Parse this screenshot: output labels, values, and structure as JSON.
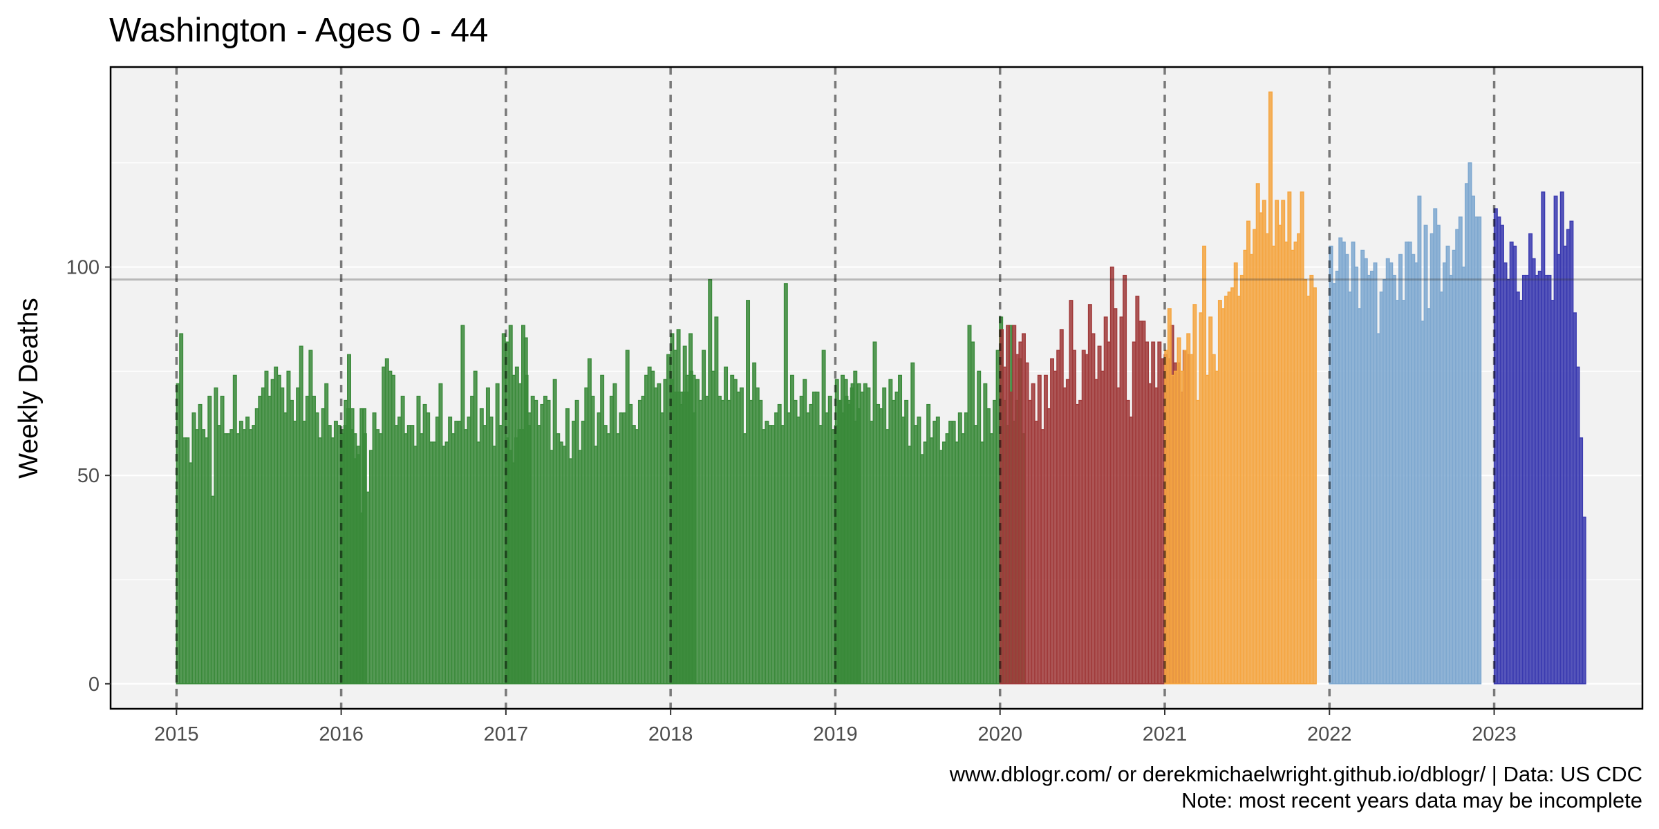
{
  "chart_data": {
    "type": "bar",
    "title": "Washington  - Ages 0 - 44",
    "xlabel": "",
    "ylabel": "Weekly Deaths",
    "x_ticks": [
      "2015",
      "2016",
      "2017",
      "2018",
      "2019",
      "2020",
      "2021",
      "2022",
      "2023"
    ],
    "y_ticks": [
      0,
      50,
      100
    ],
    "xlim": [
      2014.6,
      2023.9
    ],
    "ylim": [
      -6,
      148
    ],
    "grid": true,
    "reference_line": 97,
    "year_divider_lines": "dashed",
    "series": [
      {
        "year": "2015",
        "color": "#3a8a3a",
        "values": [
          72,
          84,
          59,
          59,
          53,
          65,
          61,
          67,
          61,
          59,
          69,
          45,
          71,
          62,
          69,
          60,
          60,
          61,
          74,
          60,
          63,
          61,
          64,
          61,
          62,
          66,
          69,
          71,
          75,
          69,
          73,
          76,
          74,
          71,
          65,
          75,
          68,
          63,
          71,
          81,
          63,
          69,
          80,
          69,
          65,
          59,
          66,
          72,
          62,
          59,
          63,
          62,
          61,
          62,
          66,
          61,
          60,
          55,
          41,
          66
        ]
      },
      {
        "year": "2016",
        "color": "#3a8a3a",
        "values": [
          60,
          68,
          79,
          66,
          54,
          57,
          66,
          60,
          46,
          56,
          65,
          61,
          60,
          76,
          78,
          75,
          74,
          62,
          64,
          69,
          60,
          62,
          62,
          57,
          69,
          60,
          67,
          65,
          58,
          58,
          64,
          72,
          57,
          58,
          64,
          60,
          63,
          63,
          86,
          61,
          64,
          69,
          75,
          58,
          66,
          62,
          71,
          64,
          57,
          72,
          62,
          84,
          59,
          56,
          53,
          59,
          61,
          61,
          83,
          62
        ]
      },
      {
        "year": "2017",
        "color": "#3a8a3a",
        "values": [
          82,
          86,
          74,
          76,
          72,
          86,
          74,
          65,
          69,
          68,
          62,
          67,
          69,
          68,
          56,
          73,
          60,
          58,
          57,
          66,
          54,
          63,
          68,
          56,
          63,
          71,
          78,
          69,
          57,
          65,
          74,
          62,
          60,
          69,
          72,
          60,
          65,
          65,
          80,
          67,
          62,
          61,
          68,
          69,
          74,
          76,
          75,
          71,
          72,
          65,
          73,
          79,
          73,
          70,
          70,
          67,
          70,
          74,
          84,
          74
        ]
      },
      {
        "year": "2018",
        "color": "#3a8a3a",
        "values": [
          84,
          80,
          85,
          70,
          81,
          70,
          75,
          65,
          73,
          68,
          80,
          69,
          97,
          75,
          88,
          69,
          68,
          76,
          68,
          74,
          73,
          70,
          71,
          60,
          92,
          68,
          77,
          71,
          68,
          61,
          63,
          62,
          62,
          65,
          67,
          62,
          96,
          65,
          74,
          68,
          64,
          69,
          73,
          65,
          67,
          70,
          70,
          62,
          80,
          65,
          69,
          61,
          62,
          68,
          74,
          73,
          68,
          71,
          75,
          66
        ]
      },
      {
        "year": "2019",
        "color": "#3a8a3a",
        "values": [
          73,
          68,
          65,
          69,
          67,
          72,
          63,
          72,
          70,
          72,
          71,
          63,
          82,
          67,
          66,
          71,
          61,
          73,
          68,
          70,
          74,
          64,
          68,
          57,
          77,
          62,
          64,
          55,
          58,
          67,
          59,
          63,
          64,
          56,
          58,
          60,
          63,
          63,
          58,
          65,
          60,
          65,
          86,
          82,
          62,
          75,
          58,
          72,
          66,
          60,
          68,
          80,
          88,
          68,
          62,
          86,
          63,
          68,
          78,
          60
        ]
      },
      {
        "year": "2020",
        "color": "#a03a3a",
        "values": [
          85,
          76,
          86,
          70,
          86,
          79,
          82,
          84,
          77,
          68,
          72,
          63,
          74,
          61,
          74,
          66,
          78,
          75,
          80,
          85,
          71,
          73,
          92,
          80,
          67,
          68,
          80,
          79,
          91,
          84,
          73,
          81,
          75,
          88,
          82,
          100,
          90,
          71,
          88,
          98,
          68,
          64,
          82,
          93,
          87,
          87,
          82,
          72,
          82,
          71,
          82,
          78,
          79,
          78,
          86,
          77,
          77,
          70,
          80,
          79
        ]
      },
      {
        "year": "2021",
        "color": "#f5a642",
        "values": [
          80,
          90,
          74,
          75,
          83,
          75,
          80,
          84,
          79,
          91,
          68,
          89,
          105,
          74,
          88,
          79,
          75,
          92,
          90,
          93,
          94,
          95,
          101,
          93,
          98,
          104,
          111,
          103,
          109,
          120,
          113,
          116,
          108,
          142,
          105,
          116,
          110,
          116,
          106,
          118,
          104,
          106,
          108,
          118,
          97,
          93,
          98,
          95
        ]
      },
      {
        "year": "2022",
        "color": "#7ea8d0",
        "values": [
          105,
          96,
          99,
          107,
          106,
          103,
          94,
          106,
          100,
          90,
          104,
          102,
          98,
          99,
          101,
          84,
          94,
          97,
          102,
          101,
          98,
          92,
          103,
          92,
          106,
          106,
          103,
          101,
          117,
          87,
          110,
          90,
          108,
          114,
          110,
          94,
          101,
          105,
          98,
          104,
          109,
          112,
          100,
          120,
          125,
          117,
          112,
          112
        ]
      },
      {
        "year": "2023",
        "color": "#3a3ab0",
        "values": [
          114,
          112,
          110,
          101,
          97,
          106,
          105,
          94,
          92,
          98,
          98,
          108,
          102,
          98,
          99,
          118,
          98,
          98,
          92,
          117,
          103,
          118,
          105,
          109,
          111,
          89,
          76,
          59,
          40
        ]
      }
    ]
  },
  "caption": {
    "line1": "www.dblogr.com/ or derekmichaelwright.github.io/dblogr/ | Data: US CDC",
    "line2": "Note: most recent years data may be incomplete"
  }
}
